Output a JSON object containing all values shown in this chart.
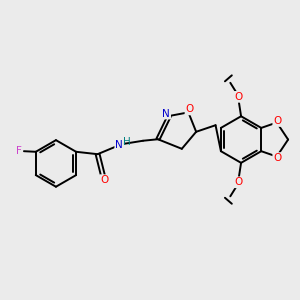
{
  "background_color": "#ebebeb",
  "bond_color": "#000000",
  "atom_colors": {
    "O": "#ff0000",
    "N": "#0000cd",
    "F": "#cc44cc",
    "H": "#008080",
    "C": "#000000"
  },
  "figsize": [
    3.0,
    3.0
  ],
  "dpi": 100,
  "lw": 1.4,
  "fs": 7.5
}
